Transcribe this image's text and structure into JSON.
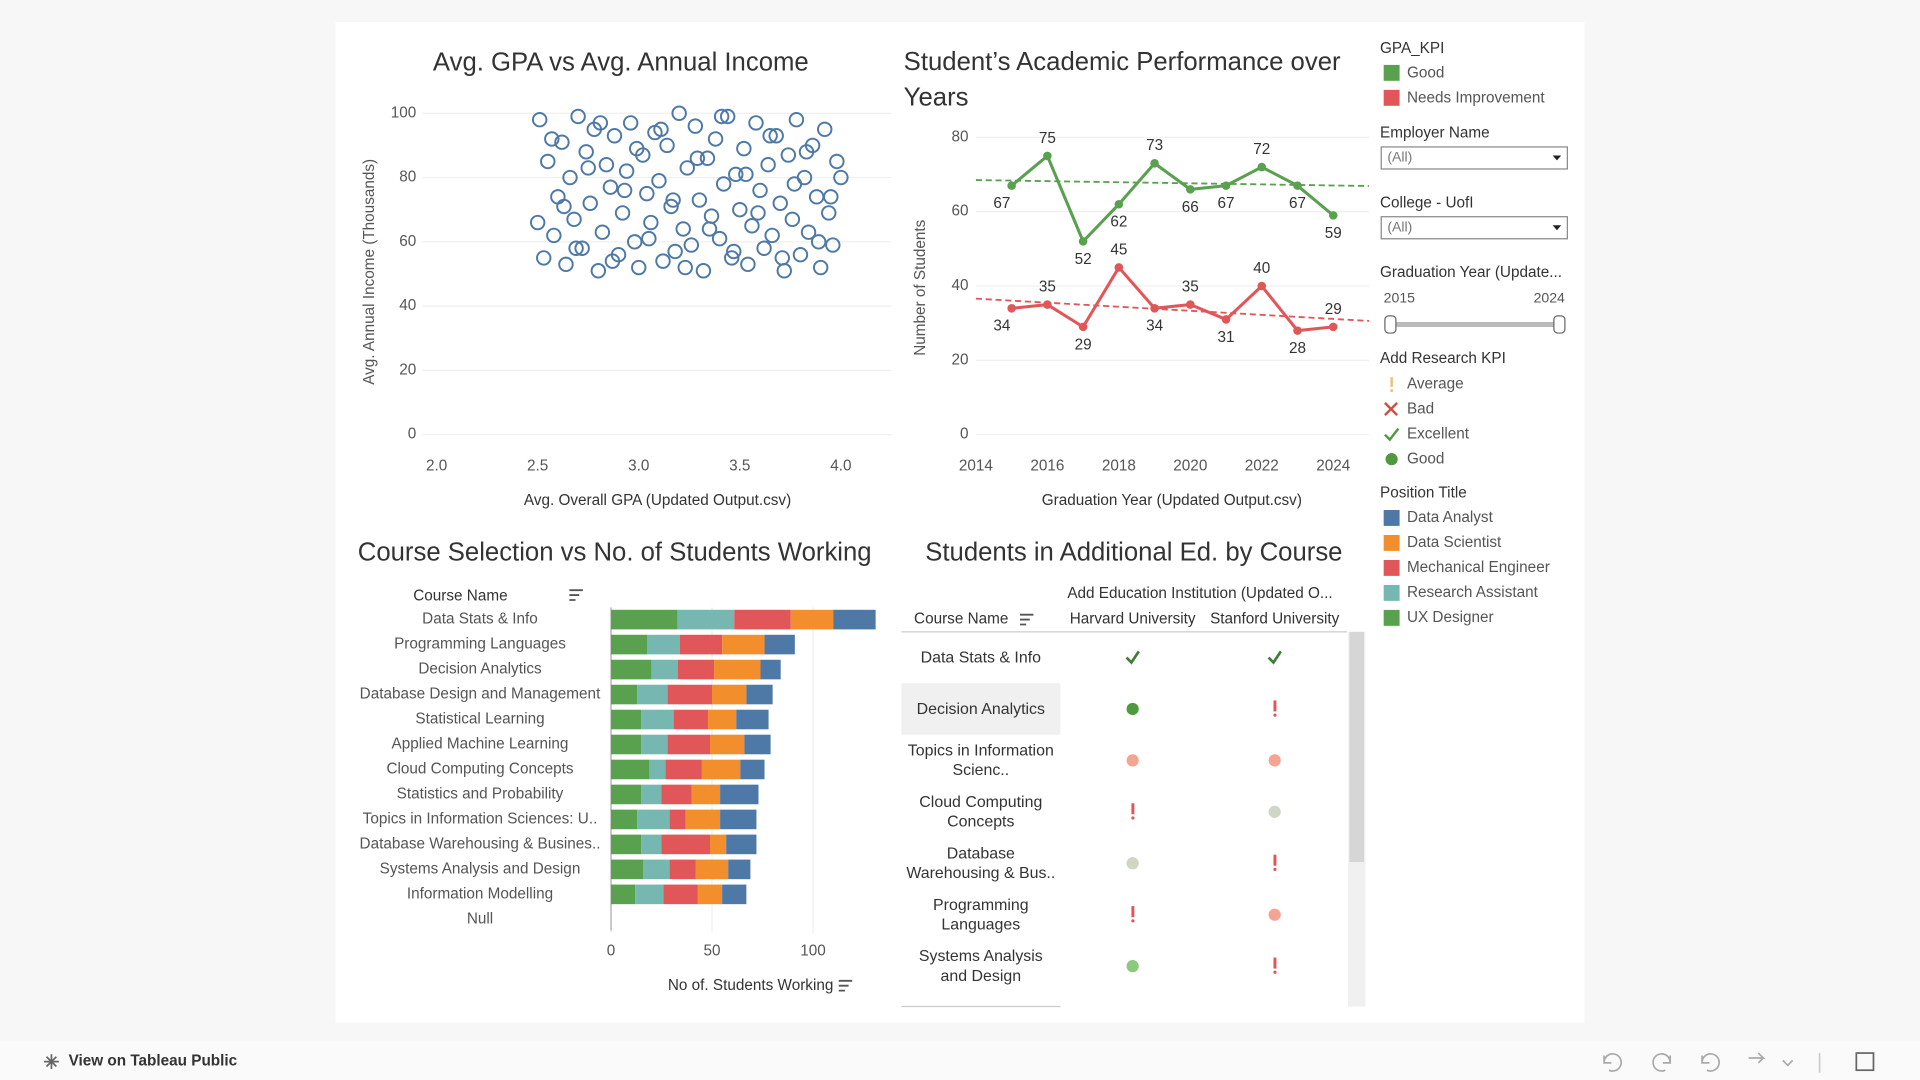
{
  "chart_data": [
    {
      "type": "scatter",
      "title": "Avg. GPA vs Avg. Annual Income",
      "x_label": "Avg. Overall GPA (Updated Output.csv)",
      "y_label": "Avg. Annual Income (Thousands)",
      "color": "#4e79a7",
      "x": [
        2.51,
        2.53,
        2.55,
        2.58,
        2.6,
        2.62,
        2.64,
        2.66,
        2.68,
        2.7,
        2.72,
        2.74,
        2.76,
        2.78,
        2.8,
        2.82,
        2.84,
        2.86,
        2.88,
        2.9,
        2.92,
        2.94,
        2.96,
        2.98,
        3.0,
        3.02,
        3.04,
        3.06,
        3.08,
        3.1,
        3.12,
        3.14,
        3.16,
        3.18,
        3.2,
        3.22,
        3.24,
        3.26,
        3.28,
        3.3,
        3.32,
        3.34,
        3.36,
        3.38,
        3.4,
        3.42,
        3.44,
        3.46,
        3.48,
        3.5,
        3.52,
        3.54,
        3.56,
        3.58,
        3.6,
        3.62,
        3.64,
        3.66,
        3.68,
        3.7,
        3.72,
        3.74,
        3.76,
        3.78,
        3.8,
        3.82,
        3.84,
        3.86,
        3.88,
        3.9,
        3.92,
        3.94,
        3.96,
        3.98,
        4.0,
        2.5,
        2.57,
        2.63,
        2.69,
        2.75,
        2.81,
        2.87,
        2.93,
        2.99,
        3.05,
        3.11,
        3.17,
        3.23,
        3.29,
        3.35,
        3.41,
        3.47,
        3.53,
        3.59,
        3.65,
        3.71,
        3.77,
        3.83,
        3.89,
        3.95
      ],
      "values": [
        98,
        55,
        85,
        62,
        74,
        91,
        53,
        80,
        67,
        99,
        58,
        88,
        72,
        95,
        51,
        63,
        84,
        77,
        93,
        56,
        69,
        82,
        97,
        60,
        52,
        87,
        75,
        66,
        94,
        79,
        54,
        90,
        71,
        57,
        100,
        64,
        83,
        59,
        96,
        73,
        51,
        86,
        68,
        92,
        61,
        78,
        99,
        55,
        81,
        70,
        89,
        53,
        65,
        97,
        76,
        58,
        84,
        62,
        93,
        72,
        51,
        87,
        67,
        98,
        56,
        80,
        63,
        90,
        74,
        52,
        95,
        69,
        59,
        85,
        80,
        66,
        92,
        71,
        58,
        83,
        97,
        54,
        76,
        89,
        61,
        95,
        73,
        52,
        86,
        64,
        99,
        57,
        81,
        69,
        93,
        55,
        78,
        88,
        60,
        74
      ],
      "xlim": [
        1.93,
        4.25
      ],
      "ylim": [
        0,
        104
      ],
      "xticks": [
        {
          "value": 2,
          "label": "2.0"
        },
        {
          "value": 2.5,
          "label": "2.5"
        },
        {
          "value": 3,
          "label": "3.0"
        },
        {
          "value": 3.5,
          "label": "3.5"
        },
        {
          "value": 4,
          "label": "4.0"
        }
      ],
      "yticks": [
        0,
        20,
        40,
        60,
        80,
        100
      ],
      "grid": true
    },
    {
      "type": "line",
      "title": "Student’s Academic Performance over Years",
      "x_label": "Graduation Year (Updated Output.csv)",
      "y_label": "Number of Students",
      "legend_title": "GPA_KPI",
      "x": [
        2015,
        2016,
        2017,
        2018,
        2019,
        2020,
        2021,
        2022,
        2023,
        2024
      ],
      "series": [
        {
          "name": "Good",
          "color": "#59a14f",
          "values": [
            67,
            75,
            52,
            62,
            73,
            66,
            67,
            72,
            67,
            59
          ],
          "trend": [
            68.5,
            66.9
          ]
        },
        {
          "name": "Needs Improvement",
          "color": "#e15759",
          "values": [
            34,
            35,
            29,
            45,
            34,
            35,
            31,
            40,
            28,
            29
          ],
          "trend": [
            36.6,
            30.6
          ]
        }
      ],
      "xlim": [
        2014,
        2025
      ],
      "ylim": [
        0,
        84
      ],
      "xticks": [
        2014,
        2016,
        2018,
        2020,
        2022,
        2024
      ],
      "yticks": [
        0,
        20,
        40,
        60,
        80
      ],
      "grid": true
    },
    {
      "type": "bar",
      "orientation": "horizontal",
      "stacked": true,
      "title": "Course Selection vs No. of Students Working",
      "category_label": "Course Name",
      "x_label": "No of. Students Working",
      "legend_title": "Position Title",
      "categories": [
        "Data Stats & Info",
        "Programming Languages",
        "Decision Analytics",
        "Database Design and Management",
        "Statistical Learning",
        "Applied Machine Learning",
        "Cloud Computing Concepts",
        "Statistics and Probability",
        "Topics in Information Sciences: U..",
        "Database Warehousing & Busines..",
        "Systems Analysis and Design",
        "Information Modelling",
        "Null"
      ],
      "series": [
        {
          "name": "Data Analyst",
          "color": "#4e79a7",
          "values": [
            21,
            15,
            10,
            13,
            16,
            13,
            12,
            19,
            18,
            15,
            11,
            12,
            0
          ]
        },
        {
          "name": "Data Scientist",
          "color": "#f28e2b",
          "values": [
            21,
            21,
            23,
            17,
            14,
            17,
            19,
            14,
            17,
            8,
            16,
            12,
            0
          ]
        },
        {
          "name": "Mechanical Engineer",
          "color": "#e15759",
          "values": [
            28,
            21,
            18,
            22,
            17,
            21,
            18,
            15,
            8,
            24,
            13,
            17,
            0
          ]
        },
        {
          "name": "Research Assistant",
          "color": "#76b7b2",
          "values": [
            28,
            16,
            13,
            15,
            16,
            13,
            8,
            10,
            16,
            10,
            13,
            14,
            0
          ]
        },
        {
          "name": "UX Designer",
          "color": "#59a14f",
          "values": [
            33,
            18,
            20,
            13,
            15,
            15,
            19,
            15,
            13,
            15,
            16,
            12,
            0
          ]
        }
      ],
      "xlim": [
        0,
        137
      ],
      "xticks": [
        0,
        50,
        100
      ],
      "grid": true
    }
  ],
  "table": {
    "title": "Students in Additional Ed. by Course",
    "column_group": "Add Education Institution (Updated O...",
    "row_header": "Course Name",
    "columns": [
      "Harvard University",
      "Stanford University"
    ],
    "rows": [
      "Data Stats & Info",
      "Decision Analytics",
      "Topics in Information Scienc..",
      "Cloud Computing Concepts",
      "Database Warehousing & Bus..",
      "Programming Languages",
      "Systems Analysis and Design"
    ]
  },
  "filters": [
    {
      "label": "Employer Name",
      "value": "(All)"
    },
    {
      "label": "College - UofI",
      "value": "(All)"
    }
  ],
  "year_filter": {
    "label": "Graduation Year (Update...",
    "range": [
      2015,
      2024
    ]
  },
  "research_kpi": {
    "title": "Add Research KPI",
    "items": [
      "Average",
      "Bad",
      "Excellent",
      "Good"
    ]
  },
  "footer": {
    "link": "View on Tableau Public"
  }
}
